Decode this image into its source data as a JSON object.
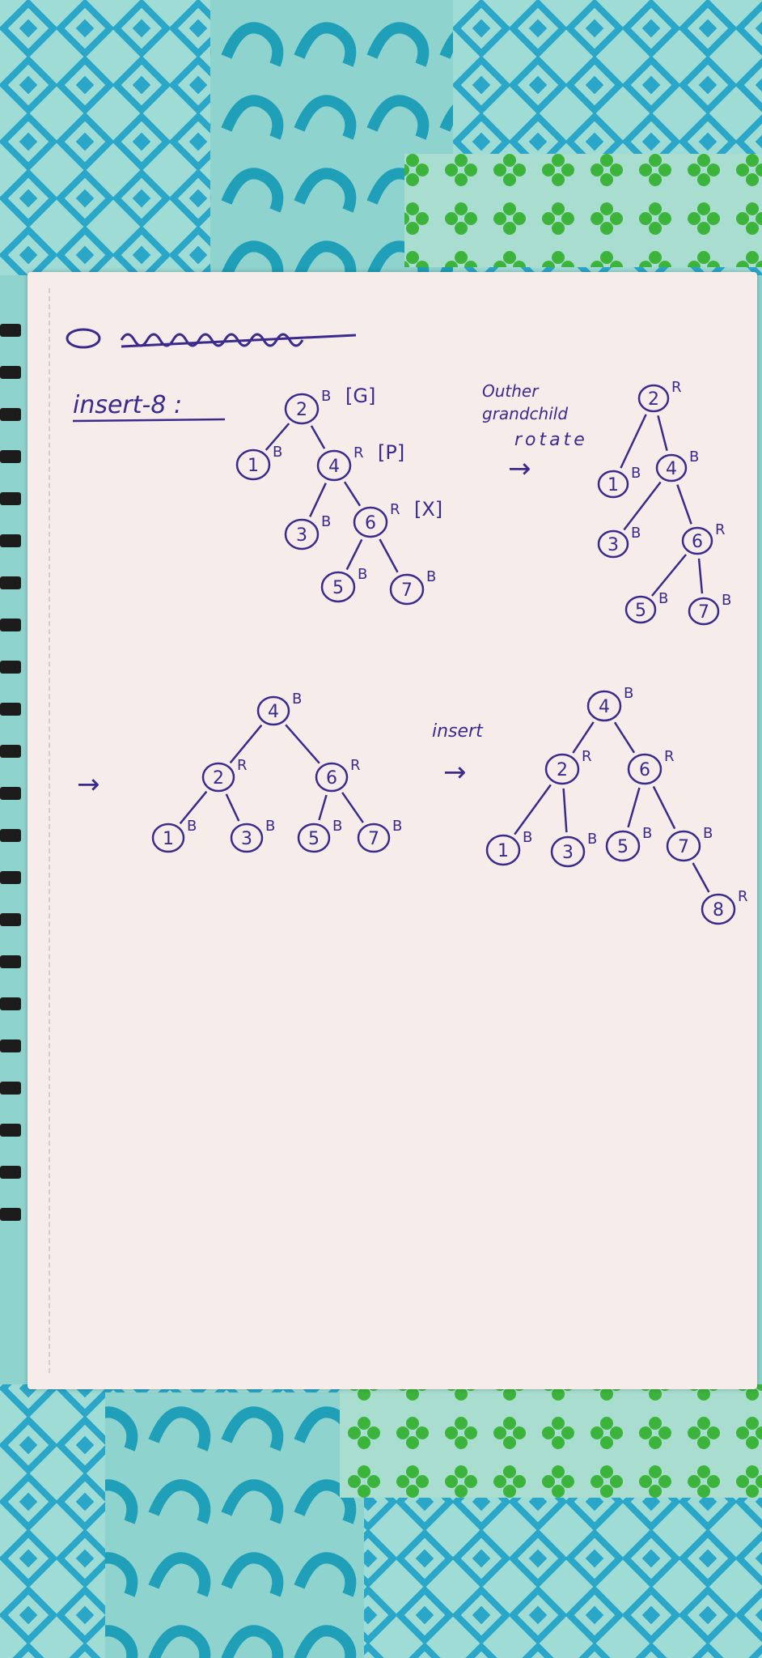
{
  "heading": {
    "label": "insert-8 :"
  },
  "diagram1": {
    "nodes": [
      {
        "id": "2",
        "value": "2",
        "color": "B",
        "tag": "[G]"
      },
      {
        "id": "1",
        "value": "1",
        "color": "B"
      },
      {
        "id": "4",
        "value": "4",
        "color": "R",
        "tag": "[P]"
      },
      {
        "id": "3",
        "value": "3",
        "color": "B"
      },
      {
        "id": "6",
        "value": "6",
        "color": "R",
        "tag": "[X]"
      },
      {
        "id": "5",
        "value": "5",
        "color": "B"
      },
      {
        "id": "7",
        "value": "7",
        "color": "B"
      }
    ]
  },
  "note": {
    "line1": "Outher",
    "line2": "grandchild",
    "line3": "rotate",
    "arrow": "→"
  },
  "diagram2": {
    "nodes": [
      {
        "id": "2",
        "value": "2",
        "color": "R"
      },
      {
        "id": "1",
        "value": "1",
        "color": "B"
      },
      {
        "id": "4",
        "value": "4",
        "color": "B"
      },
      {
        "id": "3",
        "value": "3",
        "color": "B"
      },
      {
        "id": "6",
        "value": "6",
        "color": "R"
      },
      {
        "id": "5",
        "value": "5",
        "color": "B"
      },
      {
        "id": "7",
        "value": "7",
        "color": "B"
      }
    ]
  },
  "arrow_left": "→",
  "diagram3": {
    "nodes": [
      {
        "id": "4",
        "value": "4",
        "color": "B"
      },
      {
        "id": "2",
        "value": "2",
        "color": "R"
      },
      {
        "id": "6",
        "value": "6",
        "color": "R"
      },
      {
        "id": "1",
        "value": "1",
        "color": "B"
      },
      {
        "id": "3",
        "value": "3",
        "color": "B"
      },
      {
        "id": "5",
        "value": "5",
        "color": "B"
      },
      {
        "id": "7",
        "value": "7",
        "color": "B"
      }
    ]
  },
  "insert_note": {
    "label": "insert",
    "arrow": "→"
  },
  "diagram4": {
    "nodes": [
      {
        "id": "4",
        "value": "4",
        "color": "B"
      },
      {
        "id": "2",
        "value": "2",
        "color": "R"
      },
      {
        "id": "6",
        "value": "6",
        "color": "R"
      },
      {
        "id": "1",
        "value": "1",
        "color": "B"
      },
      {
        "id": "3",
        "value": "3",
        "color": "B"
      },
      {
        "id": "5",
        "value": "5",
        "color": "B"
      },
      {
        "id": "7",
        "value": "7",
        "color": "B"
      },
      {
        "id": "8",
        "value": "8",
        "color": "R"
      }
    ]
  },
  "colors": {
    "ink": "#3a2a8c",
    "paper": "#f6ecea",
    "cloth_teal": "#8fd3cf",
    "cloth_blue": "#2aa6c8",
    "cloth_green": "#3cb43c"
  }
}
